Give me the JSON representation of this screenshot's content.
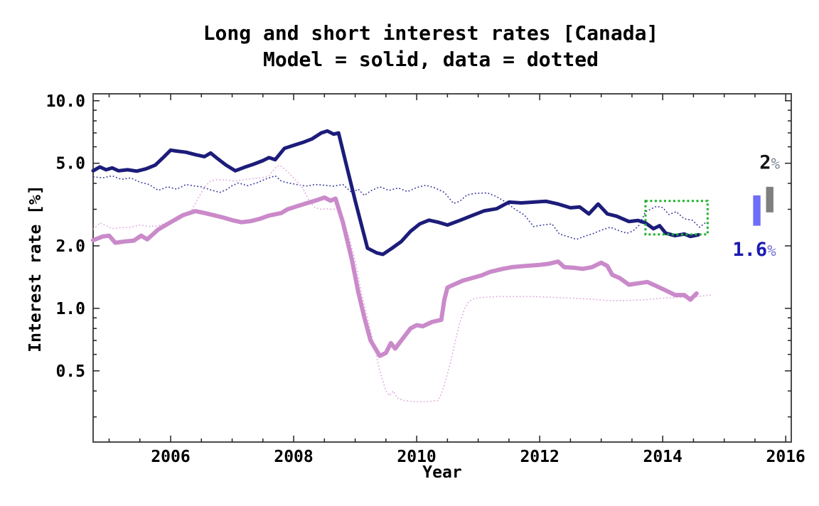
{
  "title": {
    "line1": "Long and short interest rates [Canada]",
    "line2": "Model = solid, data = dotted"
  },
  "axes": {
    "x": {
      "label": "Year",
      "min": 2004.74,
      "max": 2016.09,
      "major_ticks": [
        2006,
        2008,
        2010,
        2012,
        2014,
        2016
      ],
      "tick_labels": [
        "2006",
        "2008",
        "2010",
        "2012",
        "2014",
        "2016"
      ],
      "minor_step": 0.5
    },
    "y": {
      "label": "Interest rate [%]",
      "scale": "log",
      "min": 0.227,
      "max": 10.8,
      "major_ticks": [
        10.0,
        5.0,
        2.0,
        1.0,
        0.5
      ],
      "tick_labels": [
        "10.0",
        "5.0",
        "2.0",
        "1.0",
        "0.5"
      ],
      "minor_ticks": [
        9,
        8,
        7,
        6,
        4,
        3,
        0.9,
        0.8,
        0.7,
        0.6,
        0.4,
        0.3
      ]
    }
  },
  "chart_data": {
    "type": "line",
    "title": "Long and short interest rates [Canada]",
    "subtitle": "Model = solid, data = dotted",
    "xlabel": "Year",
    "ylabel": "Interest rate [%]",
    "y_scale": "log",
    "xlim": [
      2004.74,
      2016.09
    ],
    "ylim": [
      0.227,
      10.8
    ],
    "grid": false,
    "series": [
      {
        "name": "long rate model (solid navy)",
        "style": "solid",
        "color": "#1c1c7a",
        "width": 5,
        "x": [
          2004.74,
          2004.85,
          2004.95,
          2005.05,
          2005.15,
          2005.3,
          2005.45,
          2005.6,
          2005.75,
          2005.9,
          2006.0,
          2006.1,
          2006.25,
          2006.4,
          2006.55,
          2006.65,
          2006.75,
          2006.9,
          2007.05,
          2007.2,
          2007.35,
          2007.5,
          2007.6,
          2007.7,
          2007.85,
          2008.0,
          2008.15,
          2008.3,
          2008.45,
          2008.55,
          2008.65,
          2008.73,
          2008.85,
          2009.0,
          2009.2,
          2009.35,
          2009.45,
          2009.6,
          2009.75,
          2009.9,
          2010.05,
          2010.2,
          2010.35,
          2010.5,
          2010.7,
          2010.9,
          2011.1,
          2011.3,
          2011.5,
          2011.7,
          2011.9,
          2012.1,
          2012.3,
          2012.5,
          2012.65,
          2012.8,
          2012.95,
          2013.1,
          2013.25,
          2013.45,
          2013.6,
          2013.72,
          2013.85,
          2013.95,
          2014.05,
          2014.2,
          2014.35,
          2014.45,
          2014.58
        ],
        "y": [
          4.6,
          4.8,
          4.65,
          4.75,
          4.6,
          4.65,
          4.58,
          4.7,
          4.9,
          5.4,
          5.78,
          5.72,
          5.65,
          5.5,
          5.38,
          5.6,
          5.3,
          4.9,
          4.6,
          4.78,
          4.95,
          5.15,
          5.32,
          5.2,
          5.9,
          6.1,
          6.3,
          6.55,
          7.0,
          7.15,
          6.9,
          7.0,
          5.0,
          3.3,
          1.95,
          1.85,
          1.82,
          1.95,
          2.1,
          2.35,
          2.55,
          2.66,
          2.6,
          2.52,
          2.65,
          2.8,
          2.95,
          3.02,
          3.25,
          3.22,
          3.25,
          3.28,
          3.18,
          3.05,
          3.08,
          2.85,
          3.18,
          2.85,
          2.78,
          2.62,
          2.65,
          2.58,
          2.42,
          2.5,
          2.3,
          2.24,
          2.28,
          2.22,
          2.26
        ]
      },
      {
        "name": "long rate data (dotted navy)",
        "style": "dotted",
        "color": "#32329a",
        "width": 1.6,
        "x": [
          2004.74,
          2004.9,
          2005.05,
          2005.2,
          2005.35,
          2005.5,
          2005.65,
          2005.8,
          2005.95,
          2006.1,
          2006.25,
          2006.4,
          2006.5,
          2006.65,
          2006.8,
          2006.9,
          2007.0,
          2007.1,
          2007.25,
          2007.4,
          2007.55,
          2007.7,
          2007.8,
          2007.9,
          2008.05,
          2008.2,
          2008.35,
          2008.5,
          2008.65,
          2008.8,
          2008.95,
          2009.05,
          2009.15,
          2009.25,
          2009.4,
          2009.55,
          2009.7,
          2009.85,
          2010.0,
          2010.15,
          2010.3,
          2010.45,
          2010.6,
          2010.7,
          2010.82,
          2010.95,
          2011.15,
          2011.3,
          2011.45,
          2011.6,
          2011.75,
          2011.9,
          2012.05,
          2012.2,
          2012.32,
          2012.45,
          2012.6,
          2012.72,
          2012.85,
          2013.0,
          2013.15,
          2013.3,
          2013.42,
          2013.52,
          2013.62,
          2013.72,
          2013.8,
          2013.9,
          2014.0,
          2014.1,
          2014.22,
          2014.35,
          2014.48,
          2014.6,
          2014.72
        ],
        "y": [
          4.3,
          4.25,
          4.35,
          4.18,
          4.25,
          4.05,
          3.95,
          3.7,
          3.85,
          3.75,
          3.95,
          3.88,
          3.85,
          3.72,
          3.62,
          3.72,
          3.9,
          4.02,
          3.9,
          4.02,
          4.2,
          4.35,
          4.1,
          4.03,
          3.95,
          3.88,
          3.95,
          3.92,
          3.88,
          3.95,
          3.6,
          3.75,
          3.5,
          3.68,
          3.85,
          3.7,
          3.8,
          3.65,
          3.82,
          3.92,
          3.8,
          3.62,
          3.2,
          3.28,
          3.52,
          3.58,
          3.6,
          3.45,
          3.25,
          3.0,
          2.82,
          2.48,
          2.52,
          2.55,
          2.28,
          2.22,
          2.15,
          2.22,
          2.28,
          2.38,
          2.46,
          2.36,
          2.3,
          2.36,
          2.52,
          2.92,
          3.0,
          3.1,
          3.06,
          2.83,
          2.92,
          2.7,
          2.66,
          2.46,
          2.62
        ]
      },
      {
        "name": "short rate model (solid pink)",
        "style": "solid",
        "color": "#ca8aca",
        "width": 6,
        "x": [
          2004.74,
          2004.9,
          2005.0,
          2005.1,
          2005.25,
          2005.4,
          2005.52,
          2005.62,
          2005.8,
          2006.0,
          2006.2,
          2006.4,
          2006.55,
          2006.7,
          2006.85,
          2007.0,
          2007.15,
          2007.3,
          2007.45,
          2007.6,
          2007.8,
          2007.9,
          2008.05,
          2008.2,
          2008.35,
          2008.5,
          2008.6,
          2008.68,
          2008.8,
          2008.95,
          2009.05,
          2009.15,
          2009.25,
          2009.4,
          2009.5,
          2009.58,
          2009.65,
          2009.75,
          2009.9,
          2010.0,
          2010.1,
          2010.25,
          2010.4,
          2010.45,
          2010.5,
          2010.6,
          2010.75,
          2010.9,
          2011.05,
          2011.2,
          2011.4,
          2011.55,
          2011.75,
          2012.0,
          2012.15,
          2012.3,
          2012.4,
          2012.55,
          2012.7,
          2012.85,
          2013.0,
          2013.1,
          2013.18,
          2013.3,
          2013.45,
          2013.6,
          2013.75,
          2013.9,
          2014.05,
          2014.2,
          2014.35,
          2014.45,
          2014.55
        ],
        "y": [
          2.13,
          2.22,
          2.24,
          2.07,
          2.1,
          2.12,
          2.24,
          2.15,
          2.4,
          2.6,
          2.81,
          2.94,
          2.88,
          2.81,
          2.74,
          2.66,
          2.6,
          2.63,
          2.7,
          2.8,
          2.88,
          3.0,
          3.1,
          3.2,
          3.3,
          3.42,
          3.3,
          3.38,
          2.6,
          1.7,
          1.2,
          0.9,
          0.7,
          0.59,
          0.61,
          0.68,
          0.64,
          0.7,
          0.8,
          0.83,
          0.82,
          0.86,
          0.88,
          1.1,
          1.26,
          1.3,
          1.36,
          1.4,
          1.44,
          1.5,
          1.55,
          1.58,
          1.6,
          1.62,
          1.64,
          1.68,
          1.58,
          1.57,
          1.55,
          1.58,
          1.66,
          1.6,
          1.45,
          1.4,
          1.3,
          1.32,
          1.34,
          1.28,
          1.22,
          1.16,
          1.16,
          1.1,
          1.18
        ]
      },
      {
        "name": "short rate data (dotted pink)",
        "style": "dotted",
        "color": "#dfaade",
        "width": 1.6,
        "x": [
          2004.74,
          2004.85,
          2004.95,
          2005.05,
          2005.2,
          2005.35,
          2005.5,
          2005.65,
          2005.8,
          2005.95,
          2006.1,
          2006.25,
          2006.35,
          2006.45,
          2006.55,
          2006.65,
          2006.75,
          2006.9,
          2007.05,
          2007.2,
          2007.35,
          2007.5,
          2007.6,
          2007.7,
          2007.77,
          2007.85,
          2007.95,
          2008.05,
          2008.15,
          2008.25,
          2008.35,
          2008.45,
          2008.55,
          2008.65,
          2008.73,
          2008.8,
          2008.9,
          2009.0,
          2009.1,
          2009.2,
          2009.3,
          2009.4,
          2009.5,
          2009.56,
          2009.62,
          2009.68,
          2009.8,
          2009.95,
          2010.1,
          2010.25,
          2010.35,
          2010.42,
          2010.48,
          2010.55,
          2010.62,
          2010.7,
          2010.78,
          2010.85,
          2010.95,
          2011.1,
          2011.3,
          2011.6,
          2011.9,
          2012.2,
          2012.5,
          2012.8,
          2013.1,
          2013.4,
          2013.7,
          2014.0,
          2014.3,
          2014.55,
          2014.79
        ],
        "y": [
          2.4,
          2.58,
          2.5,
          2.42,
          2.45,
          2.46,
          2.52,
          2.48,
          2.5,
          2.6,
          2.7,
          2.83,
          3.0,
          3.4,
          3.85,
          4.1,
          4.17,
          4.15,
          4.1,
          4.17,
          4.22,
          4.27,
          4.35,
          4.75,
          4.9,
          4.7,
          4.4,
          4.1,
          3.8,
          3.3,
          3.05,
          3.0,
          3.02,
          3.0,
          3.02,
          2.7,
          2.2,
          1.7,
          1.2,
          0.9,
          0.68,
          0.5,
          0.4,
          0.38,
          0.4,
          0.37,
          0.36,
          0.355,
          0.355,
          0.357,
          0.36,
          0.4,
          0.46,
          0.55,
          0.68,
          0.85,
          1.0,
          1.08,
          1.12,
          1.13,
          1.14,
          1.14,
          1.14,
          1.13,
          1.12,
          1.11,
          1.09,
          1.09,
          1.1,
          1.12,
          1.13,
          1.14,
          1.16
        ]
      }
    ],
    "annotations": {
      "highlight_box": {
        "x1": 2013.72,
        "x2": 2014.73,
        "y1": 2.27,
        "y2": 3.29,
        "color": "#1db12c"
      },
      "bars": [
        {
          "name": "blue-bar",
          "x": 2015.53,
          "y_top": 3.5,
          "y_bottom": 2.5,
          "width_years": 0.12,
          "color": "#6e6ef8"
        },
        {
          "name": "gray-bar",
          "x": 2015.74,
          "y_top": 3.85,
          "y_bottom": 2.9,
          "width_years": 0.12,
          "color": "#7f7f7f"
        }
      ],
      "labels": [
        {
          "id": "label-2pct",
          "text_main": "2",
          "text_pct": "%",
          "x": 2015.74,
          "y": 5.05,
          "color_main": "#141414",
          "color_pct": "#7d8696"
        },
        {
          "id": "label-1-6pct",
          "text_main": "1.6",
          "text_pct": "%",
          "x": 2015.49,
          "y": 1.92,
          "color_main": "#1b1bb3",
          "color_pct": "#6f6fd0"
        }
      ]
    }
  }
}
